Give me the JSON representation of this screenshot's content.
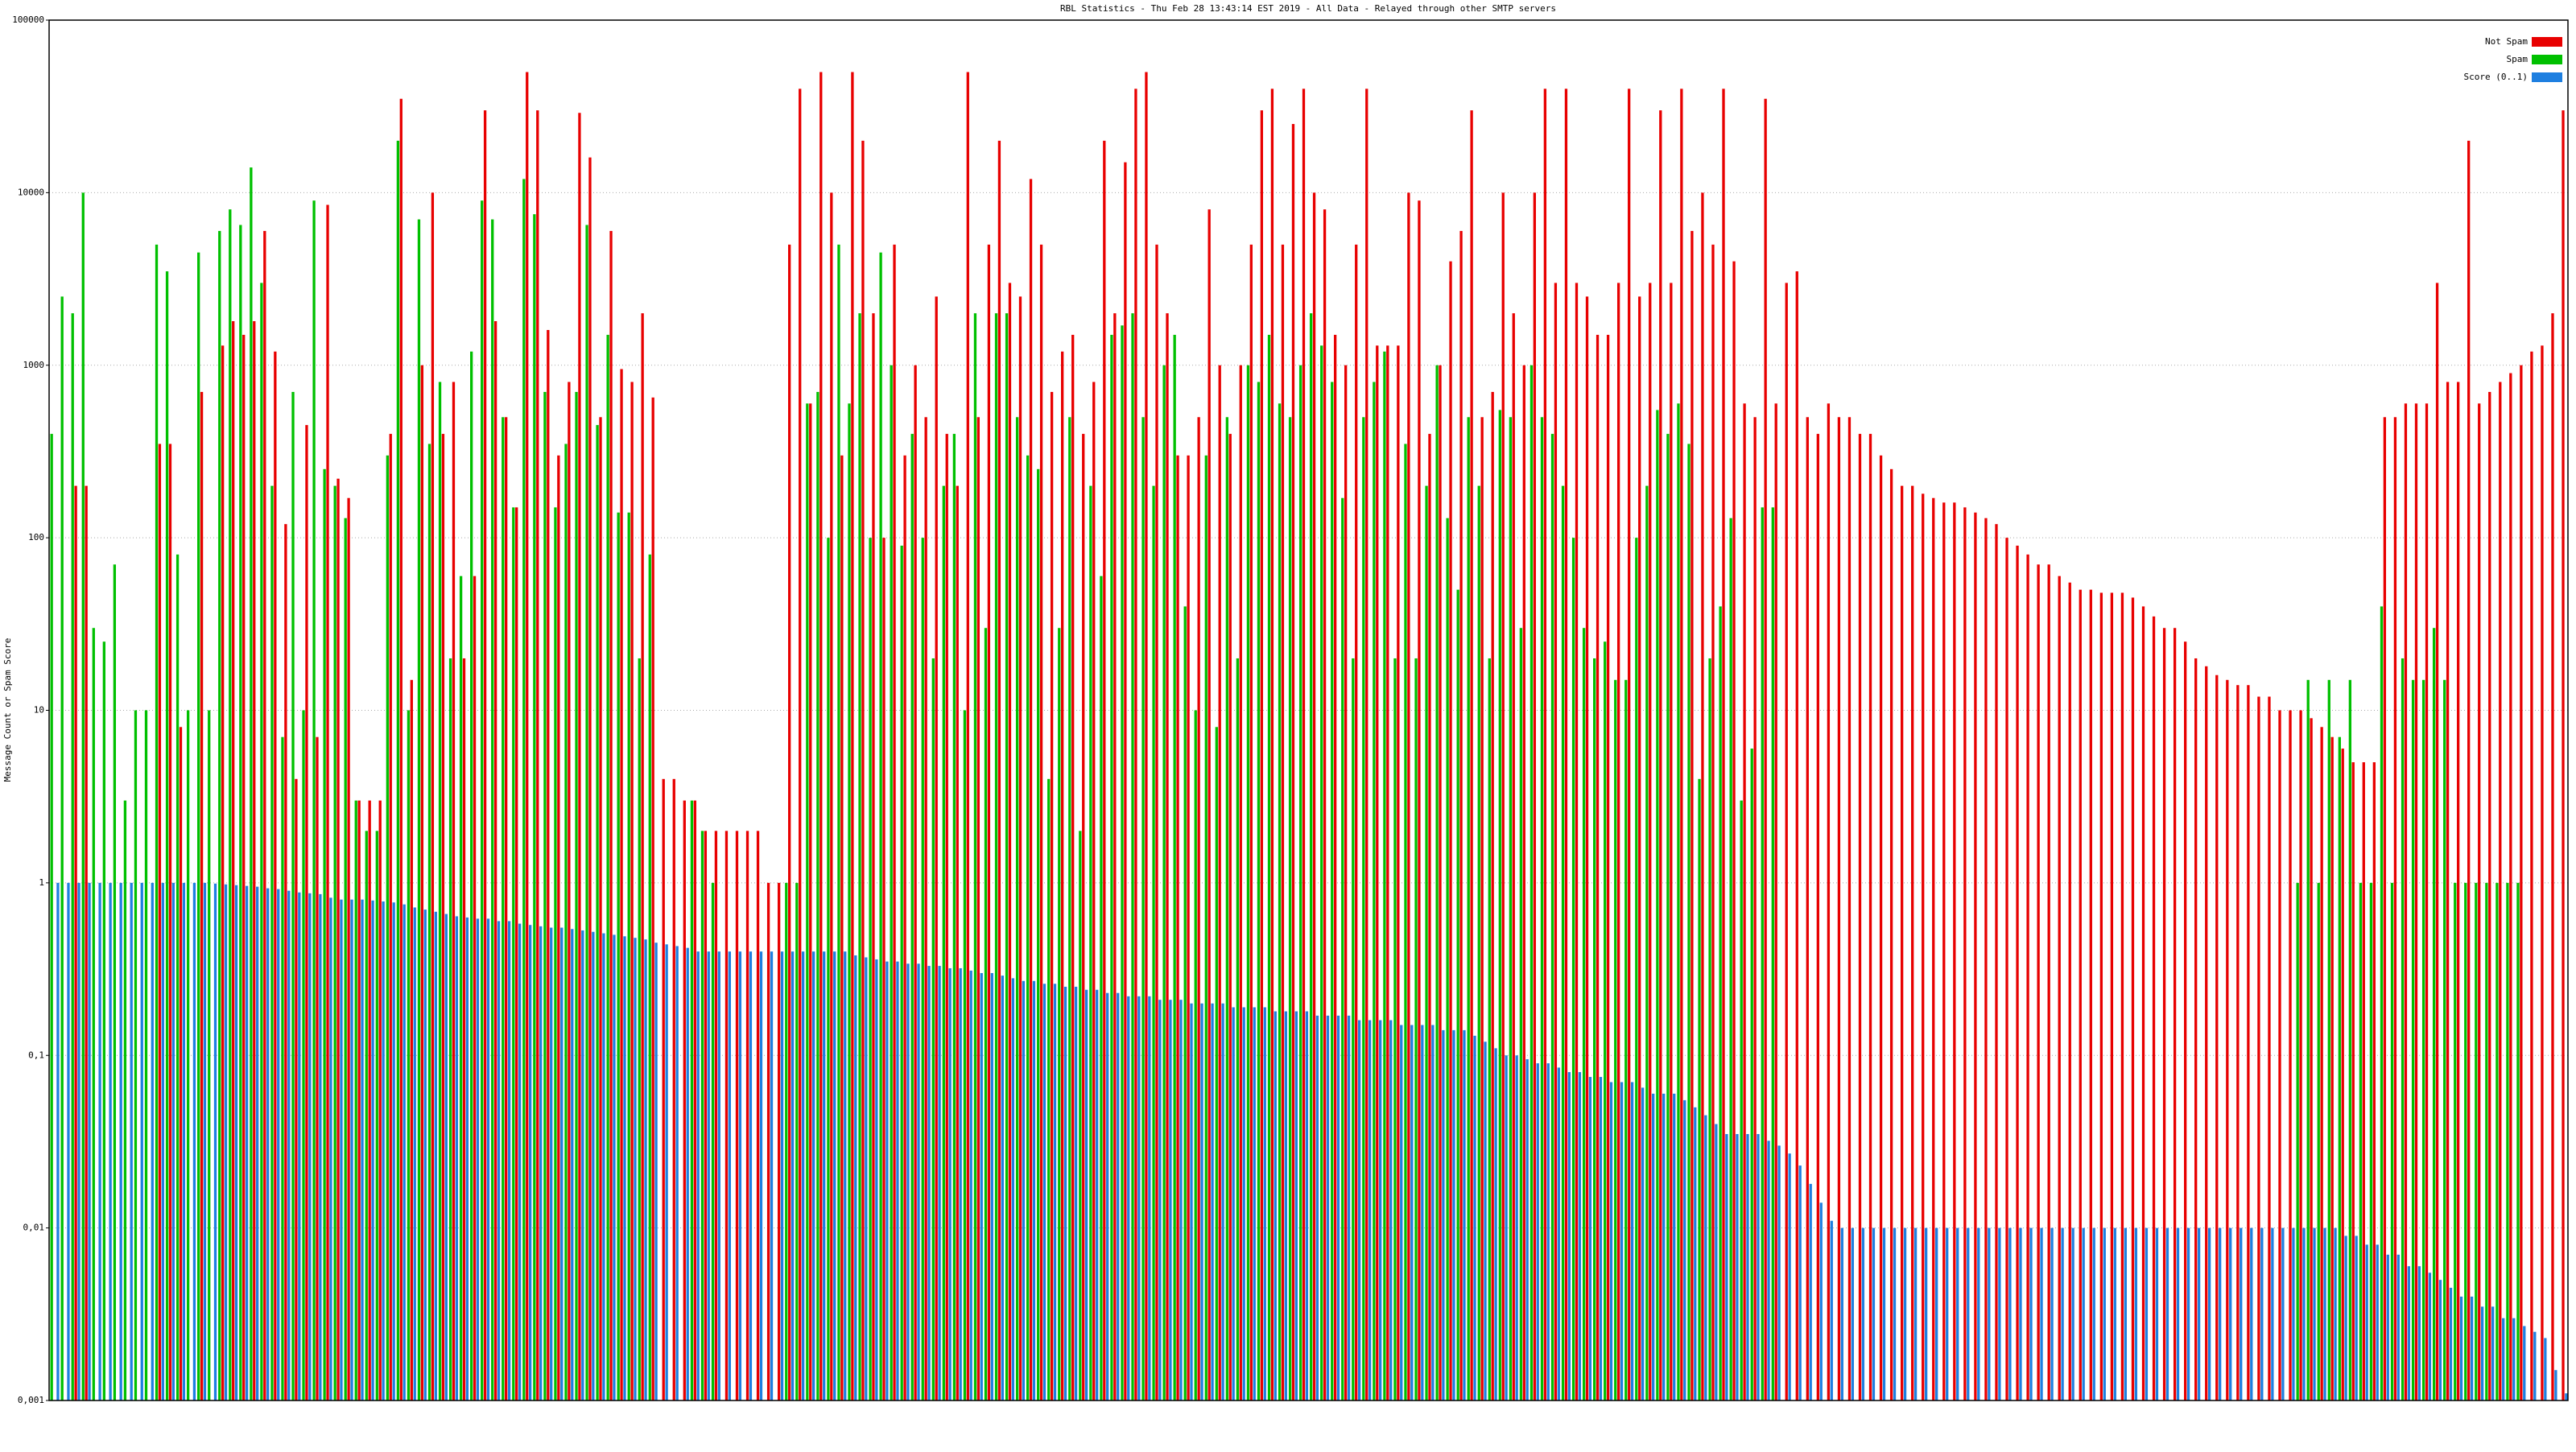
{
  "chart_data": {
    "type": "bar",
    "title": "RBL Statistics - Thu Feb 28 13:43:14 EST 2019 - All Data - Relayed through other SMTP servers",
    "y_label": "Message Count or Spam Score",
    "log_scale": true,
    "grid": true,
    "legend": "top-right",
    "ylim": [
      0.001,
      100000
    ],
    "yticks": [
      {
        "value": 0.001,
        "label": "0,001"
      },
      {
        "value": 0.01,
        "label": "0,01"
      },
      {
        "value": 0.1,
        "label": "0,1"
      },
      1,
      10,
      100,
      1000,
      10000,
      100000
    ],
    "series": [
      {
        "name": "Not Spam",
        "color": "#e80000",
        "values": [
          null,
          null,
          200,
          200,
          null,
          null,
          null,
          null,
          null,
          null,
          350,
          350,
          8,
          null,
          700,
          null,
          1300,
          1800,
          1500,
          1800,
          6000,
          1200,
          120,
          4,
          450,
          7,
          8500,
          220,
          170,
          3,
          3,
          3,
          400,
          35000,
          15,
          1000,
          10000,
          400,
          800,
          20,
          60,
          30000,
          1800,
          500,
          150,
          50000,
          30000,
          1600,
          300,
          800,
          29000,
          16000,
          500,
          6000,
          950,
          800,
          2000,
          650,
          4,
          4,
          3,
          3,
          2,
          2,
          2,
          2,
          2,
          2,
          1,
          1,
          5000,
          40000,
          600,
          50000,
          10000,
          300,
          50000,
          20000,
          2000,
          100,
          5000,
          300,
          1000,
          500,
          2500,
          400,
          200,
          50000,
          500,
          5000,
          20000,
          3000,
          2500,
          12000,
          5000,
          700,
          1200,
          1500,
          400,
          800,
          20000,
          2000,
          15000,
          40000,
          50000,
          5000,
          2000,
          300,
          300,
          500,
          8000,
          1000,
          400,
          1000,
          5000,
          30000,
          40000,
          5000,
          25000,
          40000,
          10000,
          8000,
          1500,
          1000,
          5000,
          40000,
          1300,
          1300,
          1300,
          10000,
          9000,
          400,
          1000,
          4000,
          6000,
          30000,
          500,
          700,
          10000,
          2000,
          1000,
          10000,
          40000,
          3000,
          40000,
          3000,
          2500,
          1500,
          1500,
          3000,
          40000,
          2500,
          3000,
          30000,
          3000,
          40000,
          6000,
          10000,
          5000,
          40000,
          4000,
          600,
          500,
          35000,
          600,
          3000,
          3500,
          500,
          400,
          600,
          500,
          500,
          400,
          400,
          300,
          250,
          200,
          200,
          180,
          170,
          160,
          160,
          150,
          140,
          130,
          120,
          100,
          90,
          80,
          70,
          70,
          60,
          55,
          50,
          50,
          48,
          48,
          48,
          45,
          40,
          35,
          30,
          30,
          25,
          20,
          18,
          16,
          15,
          14,
          14,
          12,
          12,
          10,
          10,
          10,
          9,
          8,
          7,
          6,
          5,
          5,
          5,
          500,
          500,
          600,
          600,
          600,
          3000,
          800,
          800,
          20000,
          600,
          700,
          800,
          900,
          1000,
          1200,
          1300,
          2000,
          30000
        ]
      },
      {
        "name": "Spam",
        "color": "#00c000",
        "values": [
          400,
          2500,
          2000,
          10000,
          30,
          25,
          70,
          3,
          10,
          10,
          5000,
          3500,
          80,
          10,
          4500,
          10,
          6000,
          8000,
          6500,
          14000,
          3000,
          200,
          7,
          700,
          10,
          9000,
          250,
          200,
          130,
          3,
          2,
          2,
          300,
          20000,
          10,
          7000,
          350,
          800,
          20,
          60,
          1200,
          9000,
          7000,
          500,
          150,
          12000,
          7500,
          700,
          150,
          350,
          700,
          6500,
          450,
          1500,
          140,
          140,
          20,
          80,
          null,
          null,
          null,
          3,
          2,
          1,
          null,
          null,
          null,
          null,
          null,
          null,
          1,
          1,
          600,
          700,
          100,
          5000,
          600,
          2000,
          100,
          4500,
          1000,
          90,
          400,
          100,
          20,
          200,
          400,
          10,
          2000,
          30,
          2000,
          2000,
          500,
          300,
          250,
          4,
          30,
          500,
          2,
          200,
          60,
          1500,
          1700,
          2000,
          500,
          200,
          1000,
          1500,
          40,
          10,
          300,
          8,
          500,
          20,
          1000,
          800,
          1500,
          600,
          500,
          1000,
          2000,
          1300,
          800,
          170,
          20,
          500,
          800,
          1200,
          20,
          350,
          20,
          200,
          1000,
          130,
          50,
          500,
          200,
          20,
          550,
          500,
          30,
          1000,
          500,
          400,
          200,
          100,
          30,
          20,
          25,
          15,
          15,
          100,
          200,
          550,
          400,
          600,
          350,
          4,
          20,
          40,
          130,
          3,
          6,
          150,
          150,
          null,
          null,
          null,
          null,
          null,
          null,
          null,
          null,
          null,
          null,
          null,
          null,
          null,
          null,
          null,
          null,
          null,
          null,
          null,
          null,
          null,
          null,
          null,
          null,
          null,
          null,
          null,
          null,
          null,
          null,
          null,
          null,
          null,
          null,
          null,
          null,
          null,
          null,
          null,
          null,
          null,
          null,
          null,
          null,
          null,
          null,
          null,
          null,
          null,
          1,
          15,
          1,
          15,
          7,
          15,
          1,
          1,
          40,
          1,
          20,
          15,
          15,
          30,
          15,
          1,
          1,
          1,
          1,
          1,
          1,
          1
        ]
      },
      {
        "name": "Score (0..1)",
        "color": "#1e7fe0",
        "values": [
          1,
          1,
          1,
          1,
          1,
          1,
          1,
          1,
          1,
          1,
          1,
          1,
          1,
          1,
          1,
          0.99,
          0.98,
          0.97,
          0.96,
          0.95,
          0.93,
          0.92,
          0.9,
          0.88,
          0.87,
          0.86,
          0.82,
          0.8,
          0.8,
          0.8,
          0.79,
          0.78,
          0.77,
          0.75,
          0.72,
          0.7,
          0.68,
          0.66,
          0.64,
          0.63,
          0.62,
          0.62,
          0.6,
          0.6,
          0.58,
          0.57,
          0.56,
          0.55,
          0.55,
          0.54,
          0.53,
          0.52,
          0.51,
          0.5,
          0.49,
          0.48,
          0.47,
          0.45,
          0.44,
          0.43,
          0.42,
          0.4,
          0.4,
          0.4,
          0.4,
          0.4,
          0.4,
          0.4,
          0.4,
          0.4,
          0.4,
          0.4,
          0.4,
          0.4,
          0.4,
          0.4,
          0.38,
          0.37,
          0.36,
          0.35,
          0.35,
          0.34,
          0.34,
          0.33,
          0.33,
          0.32,
          0.32,
          0.31,
          0.3,
          0.3,
          0.29,
          0.28,
          0.27,
          0.27,
          0.26,
          0.26,
          0.25,
          0.25,
          0.24,
          0.24,
          0.23,
          0.23,
          0.22,
          0.22,
          0.22,
          0.21,
          0.21,
          0.21,
          0.2,
          0.2,
          0.2,
          0.2,
          0.19,
          0.19,
          0.19,
          0.19,
          0.18,
          0.18,
          0.18,
          0.18,
          0.17,
          0.17,
          0.17,
          0.17,
          0.16,
          0.16,
          0.16,
          0.16,
          0.15,
          0.15,
          0.15,
          0.15,
          0.14,
          0.14,
          0.14,
          0.13,
          0.12,
          0.11,
          0.1,
          0.1,
          0.095,
          0.09,
          0.09,
          0.085,
          0.08,
          0.08,
          0.075,
          0.075,
          0.07,
          0.07,
          0.07,
          0.065,
          0.06,
          0.06,
          0.06,
          0.055,
          0.05,
          0.045,
          0.04,
          0.035,
          0.035,
          0.035,
          0.035,
          0.032,
          0.03,
          0.027,
          0.023,
          0.018,
          0.014,
          0.011,
          0.01,
          0.01,
          0.01,
          0.01,
          0.01,
          0.01,
          0.01,
          0.01,
          0.01,
          0.01,
          0.01,
          0.01,
          0.01,
          0.01,
          0.01,
          0.01,
          0.01,
          0.01,
          0.01,
          0.01,
          0.01,
          0.01,
          0.01,
          0.01,
          0.01,
          0.01,
          0.01,
          0.01,
          0.01,
          0.01,
          0.01,
          0.01,
          0.01,
          0.01,
          0.01,
          0.01,
          0.01,
          0.01,
          0.01,
          0.01,
          0.01,
          0.01,
          0.01,
          0.01,
          0.01,
          0.01,
          0.01,
          0.01,
          0.009,
          0.009,
          0.008,
          0.008,
          0.007,
          0.007,
          0.006,
          0.006,
          0.0055,
          0.005,
          0.0045,
          0.004,
          0.004,
          0.0035,
          0.0035,
          0.003,
          0.003,
          0.0027,
          0.0025,
          0.0023,
          0.0015,
          0.0011
        ]
      }
    ]
  }
}
